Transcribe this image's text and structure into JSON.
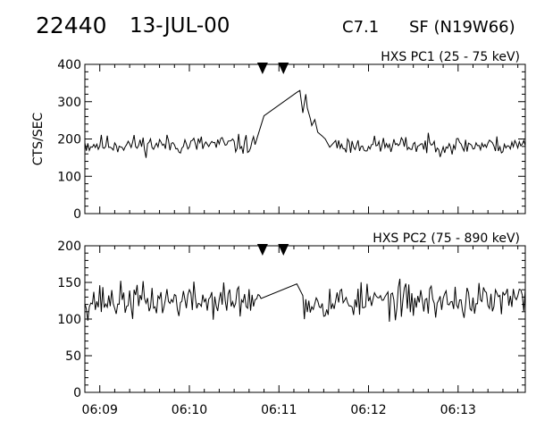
{
  "header": {
    "event_id": "22440",
    "date": "13-JUL-00",
    "flare_class": "C7.1",
    "flare_location": "SF (N19W66)"
  },
  "chart_data": [
    {
      "type": "line",
      "title": "HXS PC1 (25 - 75 keV)",
      "ylabel": "CTS/SEC",
      "xlabel": "",
      "xlim": [
        "06:08:50",
        "06:13:45"
      ],
      "ylim": [
        0,
        400
      ],
      "y_ticks": [
        0,
        100,
        200,
        300,
        400
      ],
      "x_ticks": [
        "06:09",
        "06:10",
        "06:11",
        "06:12",
        "06:13"
      ],
      "markers": [
        "06:10:49",
        "06:11:03"
      ],
      "segments": [
        {
          "baseline": 185,
          "jitter": 13,
          "seed": 11,
          "x": [
            "06:08:50",
            "06:10:44"
          ],
          "y": [
            190,
            185
          ]
        },
        {
          "baseline": null,
          "jitter": 0,
          "seed": 0,
          "x": [
            "06:10:44",
            "06:10:50",
            "06:11:12",
            "06:11:14",
            "06:11:16",
            "06:11:18",
            "06:11:19",
            "06:11:21",
            "06:11:22",
            "06:11:24",
            "06:11:26",
            "06:11:29",
            "06:11:31",
            "06:11:34",
            "06:11:38"
          ],
          "y": [
            185,
            262,
            325,
            330,
            270,
            320,
            283,
            255,
            236,
            252,
            218,
            208,
            200,
            178,
            196
          ]
        },
        {
          "baseline": 183,
          "jitter": 12,
          "seed": 23,
          "x": [
            "06:11:38",
            "06:13:45"
          ],
          "y": [
            196,
            182
          ]
        }
      ]
    },
    {
      "type": "line",
      "title": "HXS PC2 (75 - 890 keV)",
      "ylabel": "",
      "xlabel": "",
      "xlim": [
        "06:08:50",
        "06:13:45"
      ],
      "ylim": [
        0,
        200
      ],
      "y_ticks": [
        0,
        50,
        100,
        150,
        200
      ],
      "x_ticks": [
        "06:09",
        "06:10",
        "06:11",
        "06:12",
        "06:13"
      ],
      "markers": [
        "06:10:49",
        "06:11:03"
      ],
      "segments": [
        {
          "baseline": 125,
          "jitter": 12,
          "seed": 37,
          "x": [
            "06:08:50",
            "06:10:48"
          ],
          "y": [
            121,
            128
          ]
        },
        {
          "baseline": null,
          "jitter": 0,
          "seed": 0,
          "x": [
            "06:10:48",
            "06:11:12",
            "06:11:16"
          ],
          "y": [
            128,
            148,
            132
          ]
        },
        {
          "baseline": 125,
          "jitter": 12,
          "seed": 53,
          "x": [
            "06:11:16",
            "06:13:45"
          ],
          "y": [
            132,
            140
          ]
        }
      ]
    }
  ]
}
